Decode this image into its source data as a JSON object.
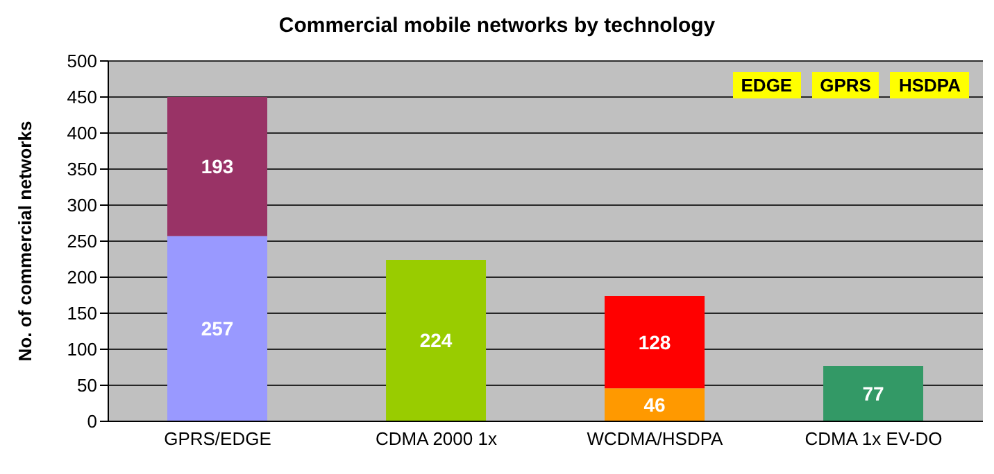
{
  "chart_data": {
    "type": "bar",
    "title": "Commercial mobile networks by technology",
    "ylabel": "No. of commercial networks",
    "categories": [
      "GPRS/EDGE",
      "CDMA 2000 1x",
      "WCDMA/HSDPA",
      "CDMA 1x EV-DO"
    ],
    "stacked": true,
    "series": [
      {
        "values": [
          257,
          224,
          46,
          77
        ],
        "colors": [
          "#9999ff",
          "#99cc00",
          "#ff9900",
          "#339966"
        ]
      },
      {
        "values": [
          193,
          null,
          128,
          null
        ],
        "colors": [
          "#993366",
          "#993366",
          "#ff0000",
          "#ff0000"
        ]
      }
    ],
    "ylim": [
      0,
      500
    ],
    "yticks": [
      0,
      50,
      100,
      150,
      200,
      250,
      300,
      350,
      400,
      450,
      500
    ],
    "grid": "y",
    "legend": false,
    "data_labels": true,
    "annotations": [
      "EDGE",
      "GPRS",
      "HSDPA"
    ]
  }
}
